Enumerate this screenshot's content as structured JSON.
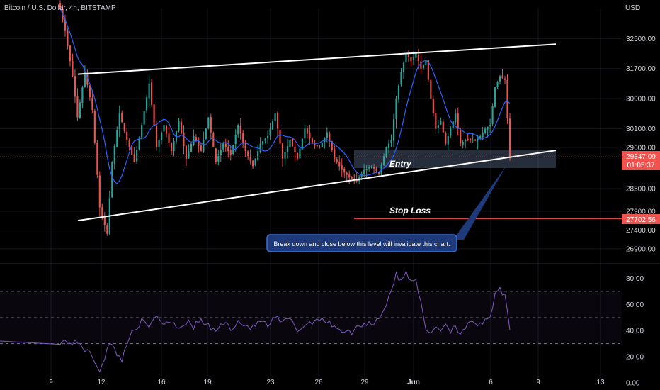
{
  "header": {
    "symbol_title": "Bitcoin / U.S. Dollar, 4h, BITSTAMP",
    "currency": "USD"
  },
  "chart_data": [
    {
      "type": "candlestick",
      "symbol": "Bitcoin / U.S. Dollar",
      "interval": "4h",
      "exchange": "BITSTAMP",
      "ylim": [
        26500,
        33300
      ],
      "y_ticks": [
        32500,
        31700,
        30900,
        30100,
        29600,
        28500,
        27900,
        27400,
        26900
      ],
      "x_tick_labels": [
        "9",
        "12",
        "16",
        "19",
        "23",
        "26",
        "29",
        "Jun",
        "6",
        "9",
        "13"
      ],
      "price_tags": {
        "current_price": "29347.09",
        "countdown": "01:05:37",
        "stop_loss_price": "27702.56"
      },
      "trendlines": {
        "upper": [
          [
            0,
            31550
          ],
          [
            1,
            32350
          ]
        ],
        "lower": [
          [
            0,
            27650
          ],
          [
            1,
            29520
          ]
        ]
      },
      "entry_zone": [
        29050,
        29530
      ],
      "annotations": {
        "entry_label": "Entry",
        "stop_loss_label": "Stop Loss",
        "callout": "Break down and close below this level will invalidate this chart."
      },
      "anchors": [
        [
          0,
          33300
        ],
        [
          2,
          32700
        ],
        [
          5,
          31500
        ],
        [
          7,
          30400
        ],
        [
          10,
          31600
        ],
        [
          13,
          30600
        ],
        [
          16,
          28000
        ],
        [
          19,
          27300
        ],
        [
          21,
          29200
        ],
        [
          24,
          30500
        ],
        [
          27,
          29800
        ],
        [
          30,
          29200
        ],
        [
          33,
          30200
        ],
        [
          36,
          31300
        ],
        [
          39,
          29600
        ],
        [
          42,
          30200
        ],
        [
          45,
          29500
        ],
        [
          48,
          30300
        ],
        [
          51,
          29300
        ],
        [
          54,
          29900
        ],
        [
          57,
          29500
        ],
        [
          60,
          30400
        ],
        [
          63,
          29200
        ],
        [
          66,
          29700
        ],
        [
          69,
          29400
        ],
        [
          72,
          30200
        ],
        [
          75,
          29500
        ],
        [
          78,
          29100
        ],
        [
          81,
          29700
        ],
        [
          84,
          29900
        ],
        [
          87,
          30500
        ],
        [
          90,
          29300
        ],
        [
          93,
          29800
        ],
        [
          96,
          29300
        ],
        [
          99,
          30100
        ],
        [
          102,
          29700
        ],
        [
          105,
          29600
        ],
        [
          108,
          30000
        ],
        [
          111,
          29300
        ],
        [
          114,
          29000
        ],
        [
          117,
          28800
        ],
        [
          120,
          28700
        ],
        [
          123,
          29000
        ],
        [
          126,
          29100
        ],
        [
          129,
          28900
        ],
        [
          132,
          29600
        ],
        [
          134,
          29800
        ],
        [
          136,
          30900
        ],
        [
          138,
          31600
        ],
        [
          140,
          32100
        ],
        [
          142,
          31900
        ],
        [
          144,
          32100
        ],
        [
          146,
          31700
        ],
        [
          148,
          31900
        ],
        [
          150,
          30900
        ],
        [
          152,
          30100
        ],
        [
          154,
          30300
        ],
        [
          156,
          29700
        ],
        [
          158,
          30100
        ],
        [
          160,
          30500
        ],
        [
          162,
          29700
        ],
        [
          164,
          29800
        ],
        [
          166,
          29800
        ],
        [
          168,
          29800
        ],
        [
          170,
          29900
        ],
        [
          172,
          30100
        ],
        [
          174,
          30200
        ],
        [
          176,
          31200
        ],
        [
          178,
          31500
        ],
        [
          180,
          31400
        ],
        [
          182,
          29350
        ]
      ],
      "ma_color": "#2962ff",
      "up_color": "#26a69a",
      "down_color": "#ef5350"
    },
    {
      "type": "line",
      "indicator": "RSI",
      "ylim": [
        0,
        90
      ],
      "y_ticks": [
        80.0,
        60.0,
        40.0,
        20.0,
        0.0
      ],
      "band": [
        30,
        70
      ],
      "mid": 50,
      "anchors": [
        [
          0,
          32
        ],
        [
          8,
          30
        ],
        [
          13,
          20
        ],
        [
          16,
          10
        ],
        [
          20,
          30
        ],
        [
          25,
          18
        ],
        [
          29,
          40
        ],
        [
          33,
          47
        ],
        [
          36,
          42
        ],
        [
          39,
          52
        ],
        [
          42,
          45
        ],
        [
          45,
          48
        ],
        [
          48,
          42
        ],
        [
          51,
          47
        ],
        [
          54,
          43
        ],
        [
          57,
          48
        ],
        [
          60,
          43
        ],
        [
          63,
          40
        ],
        [
          66,
          46
        ],
        [
          69,
          42
        ],
        [
          72,
          47
        ],
        [
          75,
          44
        ],
        [
          78,
          42
        ],
        [
          81,
          48
        ],
        [
          84,
          43
        ],
        [
          87,
          50
        ],
        [
          90,
          46
        ],
        [
          93,
          49
        ],
        [
          96,
          40
        ],
        [
          99,
          44
        ],
        [
          102,
          47
        ],
        [
          105,
          50
        ],
        [
          108,
          46
        ],
        [
          111,
          44
        ],
        [
          114,
          40
        ],
        [
          117,
          38
        ],
        [
          120,
          42
        ],
        [
          123,
          46
        ],
        [
          126,
          45
        ],
        [
          129,
          50
        ],
        [
          132,
          60
        ],
        [
          134,
          72
        ],
        [
          136,
          82
        ],
        [
          138,
          78
        ],
        [
          140,
          84
        ],
        [
          142,
          79
        ],
        [
          144,
          80
        ],
        [
          146,
          60
        ],
        [
          148,
          40
        ],
        [
          150,
          38
        ],
        [
          152,
          44
        ],
        [
          154,
          40
        ],
        [
          156,
          46
        ],
        [
          158,
          40
        ],
        [
          160,
          44
        ],
        [
          162,
          38
        ],
        [
          164,
          43
        ],
        [
          166,
          45
        ],
        [
          168,
          44
        ],
        [
          170,
          46
        ],
        [
          172,
          47
        ],
        [
          174,
          48
        ],
        [
          176,
          68
        ],
        [
          178,
          71
        ],
        [
          180,
          67
        ],
        [
          182,
          38
        ]
      ],
      "line_color": "#7e57c2"
    }
  ]
}
